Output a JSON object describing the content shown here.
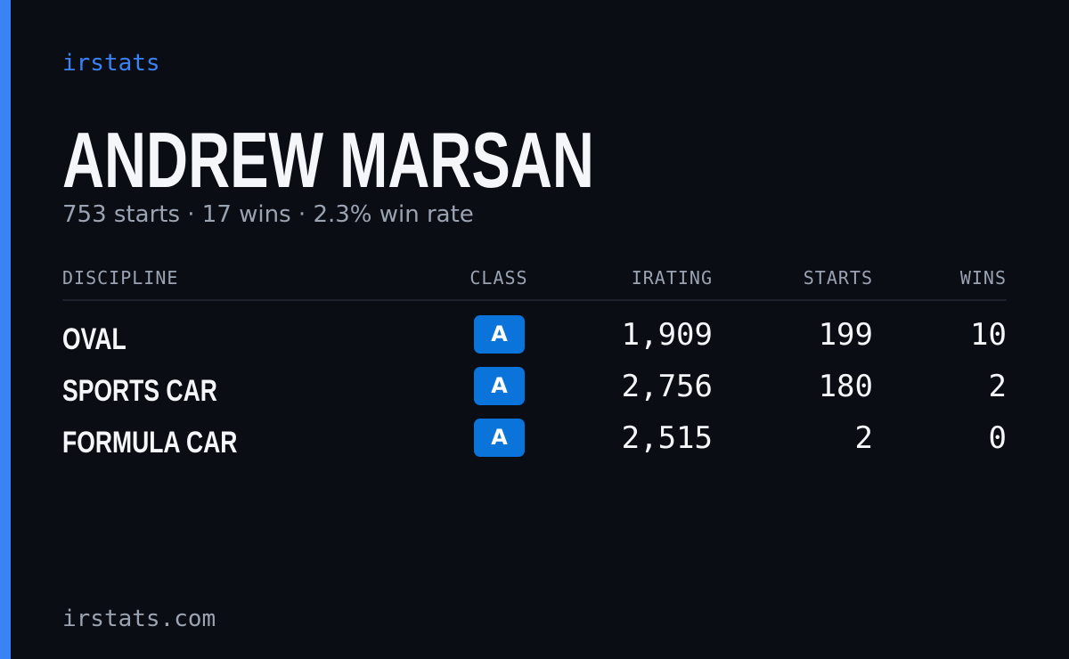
{
  "brand": "irstats",
  "header": {
    "name": "ANDREW MARSAN",
    "summary": "753 starts · 17 wins · 2.3% win rate"
  },
  "table": {
    "columns": [
      "DISCIPLINE",
      "CLASS",
      "IRATING",
      "STARTS",
      "WINS"
    ],
    "rows": [
      [
        "OVAL",
        "A",
        "1,909",
        "199",
        "10"
      ],
      [
        "SPORTS CAR",
        "A",
        "2,756",
        "180",
        "2"
      ],
      [
        "FORMULA CAR",
        "A",
        "2,515",
        "2",
        "0"
      ]
    ]
  },
  "footer": "irstats.com"
}
